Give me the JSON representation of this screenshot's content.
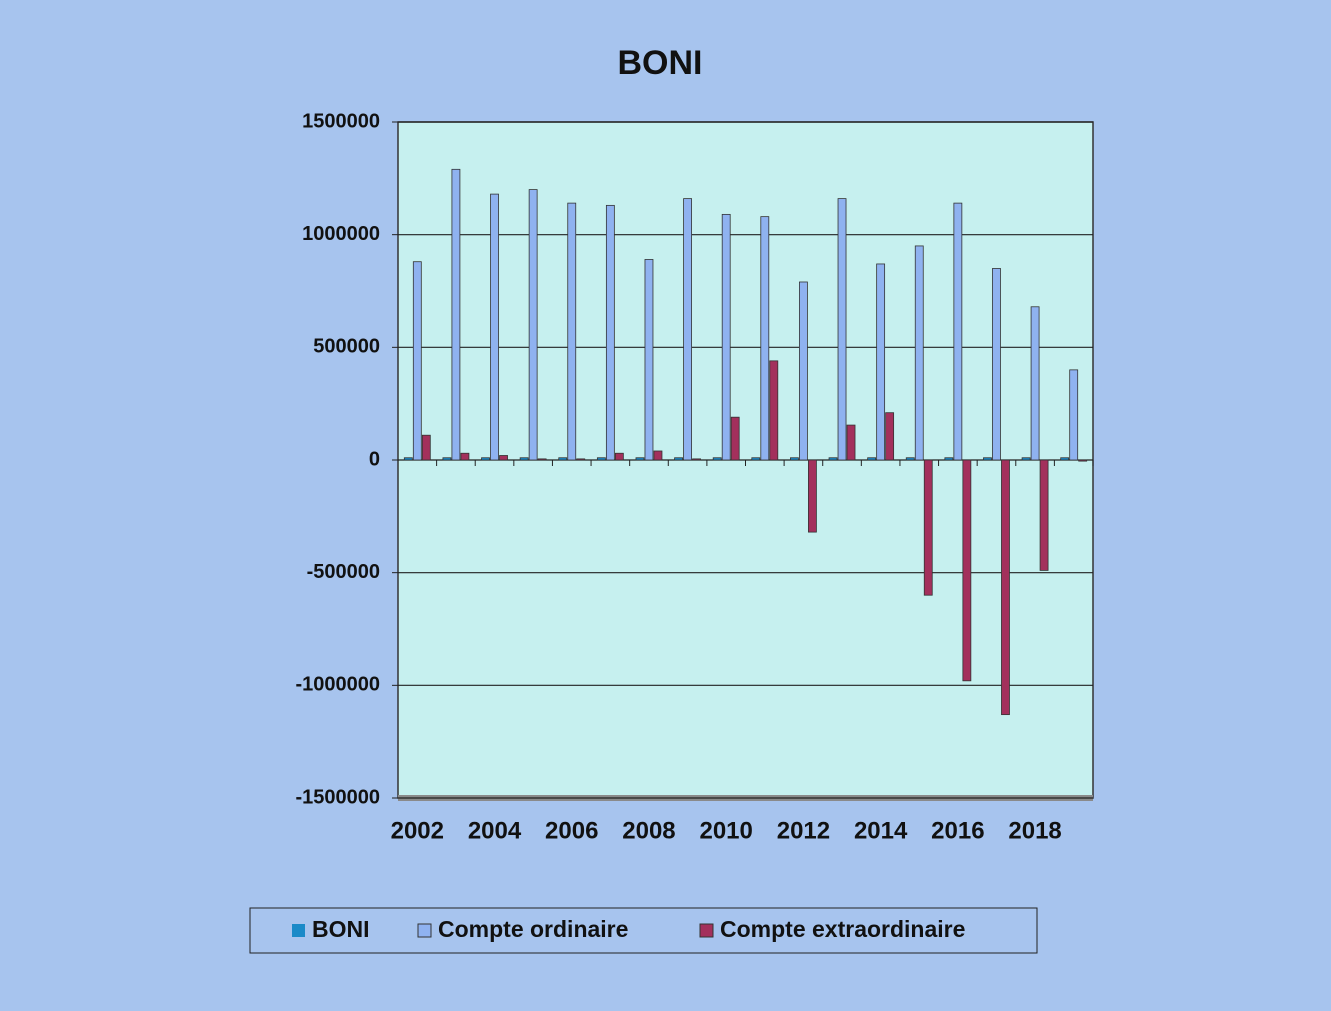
{
  "chart_data": {
    "type": "bar",
    "title": "BONI",
    "categories": [
      "2002",
      null,
      "2004",
      null,
      "2006",
      null,
      "2008",
      null,
      "2010",
      null,
      "2012",
      null,
      "2014",
      null,
      "2016",
      null,
      "2018",
      null
    ],
    "series": [
      {
        "name": "BONI",
        "color": "#1a8ac8",
        "values": [
          10000,
          10000,
          10000,
          10000,
          10000,
          10000,
          10000,
          10000,
          10000,
          10000,
          10000,
          10000,
          10000,
          10000,
          10000,
          10000,
          10000,
          10000
        ]
      },
      {
        "name": "Compte ordinaire",
        "color": "#8fb2f0",
        "values": [
          880000,
          1290000,
          1180000,
          1200000,
          1140000,
          1130000,
          890000,
          1160000,
          1090000,
          1080000,
          790000,
          1160000,
          870000,
          950000,
          1140000,
          850000,
          680000,
          400000
        ]
      },
      {
        "name": "Compte extraordinaire",
        "color": "#a3305c",
        "values": [
          110000,
          30000,
          20000,
          5000,
          5000,
          30000,
          40000,
          5000,
          190000,
          440000,
          -320000,
          155000,
          210000,
          -600000,
          -980000,
          -1130000,
          -490000,
          -5000
        ]
      }
    ],
    "ylim": [
      -1500000,
      1500000
    ],
    "yticks": [
      -1500000,
      -1000000,
      -500000,
      0,
      500000,
      1000000,
      1500000
    ],
    "grid": true,
    "legend": "bottom"
  }
}
